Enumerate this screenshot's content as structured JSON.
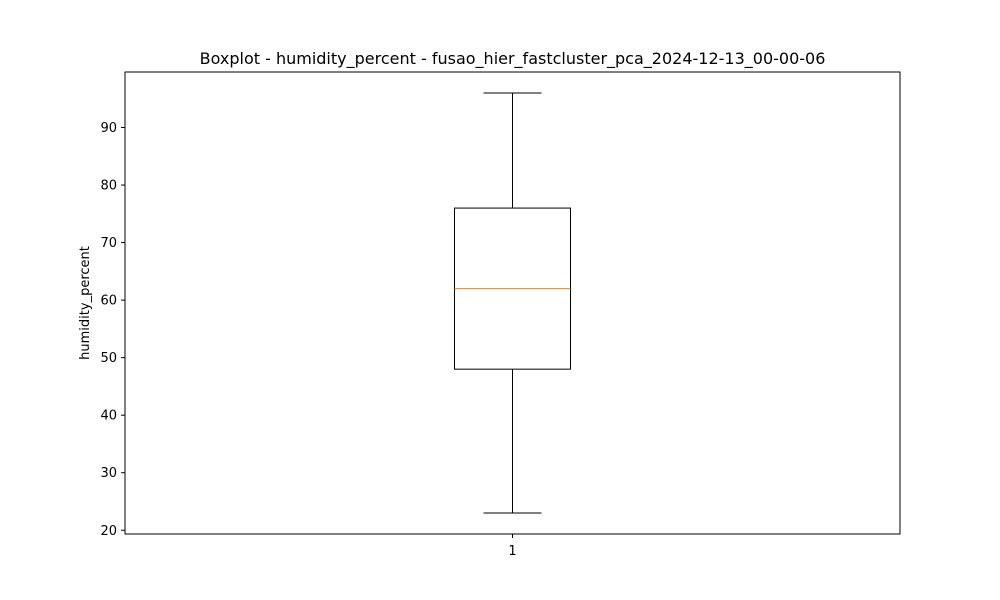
{
  "chart_data": {
    "type": "boxplot",
    "title": "Boxplot - humidity_percent - fusao_hier_fastcluster_pca_2024-12-13_00-00-06",
    "xlabel": "",
    "ylabel": "humidity_percent",
    "categories": [
      "1"
    ],
    "boxes": [
      {
        "label": "1",
        "whisker_low": 23,
        "q1": 48,
        "median": 62,
        "q3": 76,
        "whisker_high": 96
      }
    ],
    "ylim": [
      19.35,
      99.65
    ],
    "yticks": [
      20,
      30,
      40,
      50,
      60,
      70,
      80,
      90
    ],
    "grid": false,
    "colors": {
      "box": "#000000",
      "median": "#ff7f0e",
      "whisker": "#000000"
    }
  }
}
